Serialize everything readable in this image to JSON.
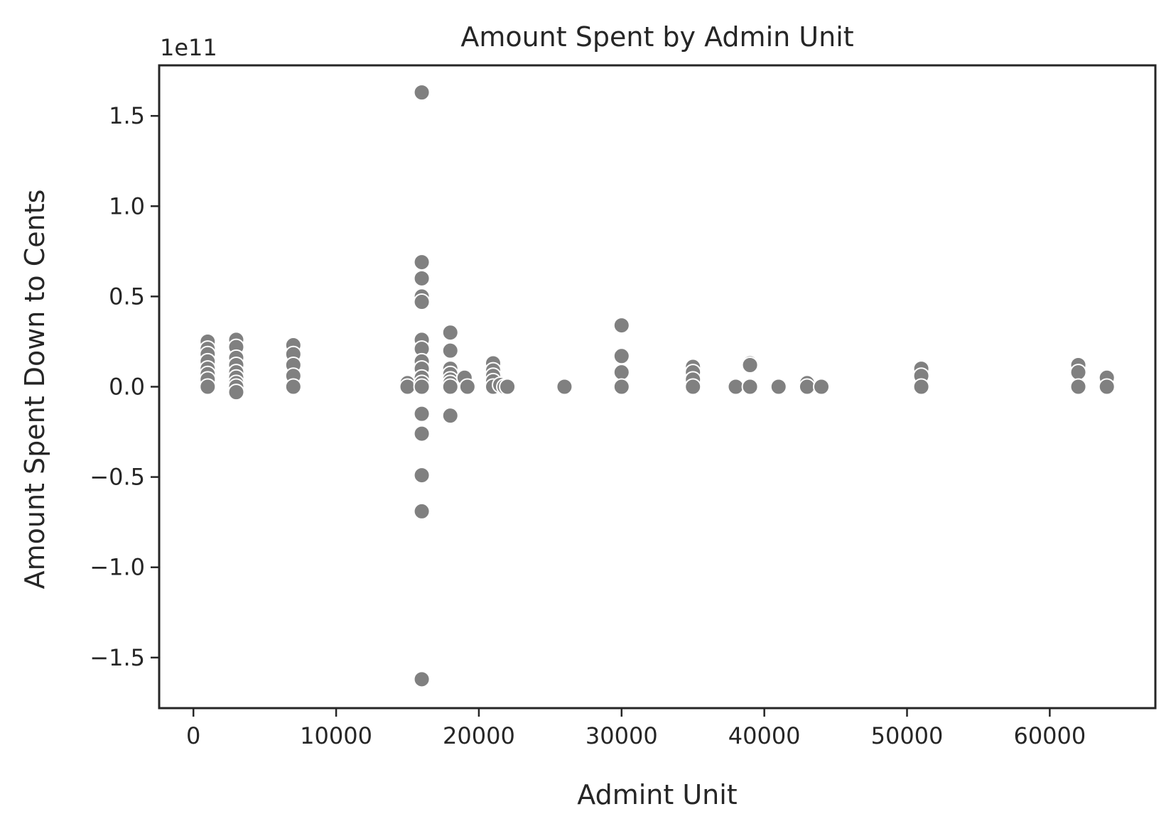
{
  "chart_data": {
    "type": "scatter",
    "title": "Amount Spent by Admin Unit",
    "xlabel": "Admint Unit",
    "ylabel": "Amount Spent Down to Cents",
    "y_offset_label": "1e11",
    "xlim": [
      -2400,
      67400
    ],
    "ylim": [
      -1.78,
      1.78
    ],
    "y_scale": 100000000000,
    "x_ticks": [
      0,
      10000,
      20000,
      30000,
      40000,
      50000,
      60000
    ],
    "x_tick_labels": [
      "0",
      "10000",
      "20000",
      "30000",
      "40000",
      "50000",
      "60000"
    ],
    "y_ticks": [
      -1.5,
      -1.0,
      -0.5,
      0.0,
      0.5,
      1.0,
      1.5
    ],
    "y_tick_labels": [
      "−1.5",
      "−1.0",
      "−0.5",
      "0.0",
      "0.5",
      "1.0",
      "1.5"
    ],
    "grid": false,
    "marker_color": "#808080",
    "marker_edge_color": "#ffffff",
    "series": [
      {
        "points": [
          [
            1000,
            0.25
          ],
          [
            1000,
            0.21
          ],
          [
            1000,
            0.18
          ],
          [
            1000,
            0.14
          ],
          [
            1000,
            0.1
          ],
          [
            1000,
            0.07
          ],
          [
            1000,
            0.04
          ],
          [
            1000,
            0.0
          ],
          [
            3000,
            0.26
          ],
          [
            3000,
            0.22
          ],
          [
            3000,
            0.16
          ],
          [
            3000,
            0.12
          ],
          [
            3000,
            0.08
          ],
          [
            3000,
            0.05
          ],
          [
            3000,
            0.02
          ],
          [
            3000,
            0.0
          ],
          [
            3000,
            -0.03
          ],
          [
            7000,
            0.23
          ],
          [
            7000,
            0.18
          ],
          [
            7000,
            0.12
          ],
          [
            7000,
            0.06
          ],
          [
            7000,
            0.0
          ],
          [
            15000,
            0.02
          ],
          [
            15000,
            0.0
          ],
          [
            16000,
            1.63
          ],
          [
            16000,
            0.69
          ],
          [
            16000,
            0.6
          ],
          [
            16000,
            0.5
          ],
          [
            16000,
            0.47
          ],
          [
            16000,
            0.26
          ],
          [
            16000,
            0.21
          ],
          [
            16000,
            0.14
          ],
          [
            16000,
            0.1
          ],
          [
            16000,
            0.05
          ],
          [
            16000,
            0.02
          ],
          [
            16000,
            0.0
          ],
          [
            16000,
            -0.15
          ],
          [
            16000,
            -0.26
          ],
          [
            16000,
            -0.49
          ],
          [
            16000,
            -0.69
          ],
          [
            16000,
            -1.62
          ],
          [
            18000,
            0.3
          ],
          [
            18000,
            0.2
          ],
          [
            18000,
            0.1
          ],
          [
            18000,
            0.07
          ],
          [
            18000,
            0.04
          ],
          [
            18000,
            0.02
          ],
          [
            18000,
            0.0
          ],
          [
            18000,
            -0.16
          ],
          [
            19000,
            0.05
          ],
          [
            19200,
            0.0
          ],
          [
            21000,
            0.13
          ],
          [
            21000,
            0.09
          ],
          [
            21000,
            0.06
          ],
          [
            21000,
            0.03
          ],
          [
            21000,
            0.0
          ],
          [
            21500,
            0.01
          ],
          [
            21800,
            0.0
          ],
          [
            22000,
            0.0
          ],
          [
            26000,
            0.0
          ],
          [
            30000,
            0.34
          ],
          [
            30000,
            0.17
          ],
          [
            30000,
            0.08
          ],
          [
            30000,
            0.0
          ],
          [
            35000,
            0.11
          ],
          [
            35000,
            0.08
          ],
          [
            35000,
            0.04
          ],
          [
            35000,
            0.0
          ],
          [
            38000,
            0.0
          ],
          [
            39000,
            0.13
          ],
          [
            39000,
            0.12
          ],
          [
            39000,
            0.0
          ],
          [
            41000,
            0.0
          ],
          [
            43000,
            0.02
          ],
          [
            43000,
            0.0
          ],
          [
            44000,
            0.0
          ],
          [
            51000,
            0.1
          ],
          [
            51000,
            0.06
          ],
          [
            51000,
            0.0
          ],
          [
            62000,
            0.12
          ],
          [
            62000,
            0.08
          ],
          [
            62000,
            0.0
          ],
          [
            64000,
            0.05
          ],
          [
            64000,
            0.0
          ]
        ]
      }
    ]
  }
}
